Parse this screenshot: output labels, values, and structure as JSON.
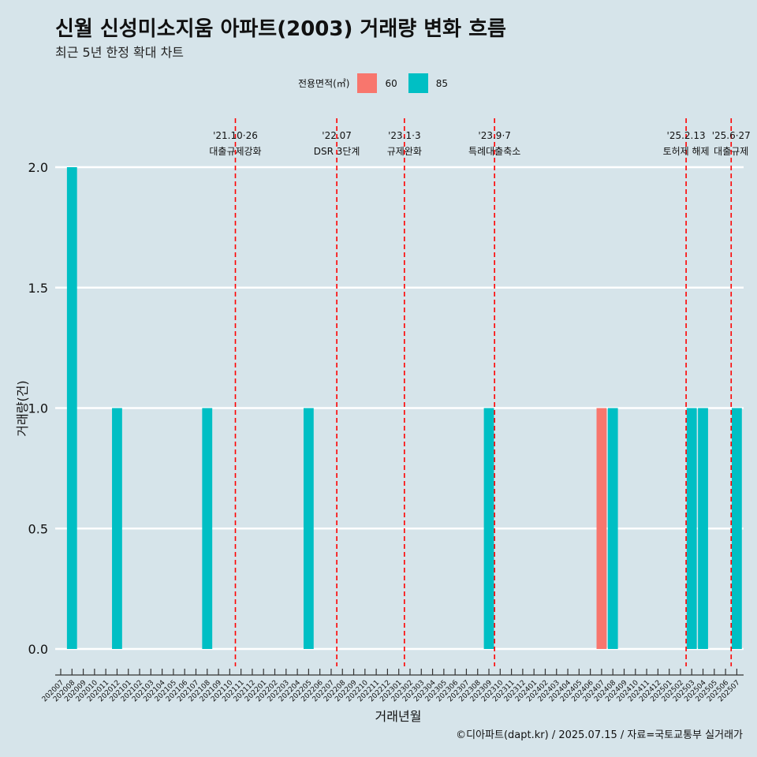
{
  "chart_data": {
    "type": "bar",
    "title": "신월 신성미소지움 아파트(2003) 거래량 변화 흐름",
    "subtitle": "최근 5년 한정 확대 차트",
    "xlabel": "거래년월",
    "ylabel": "거래량(건)",
    "ylim": [
      0,
      2
    ],
    "yticks": [
      "0.0",
      "0.5",
      "1.0",
      "1.5",
      "2.0"
    ],
    "legend": {
      "title": "전용면적(㎡)",
      "position": "top",
      "items": [
        {
          "name": "60",
          "color": "#f8766d"
        },
        {
          "name": "85",
          "color": "#00bfc4"
        }
      ]
    },
    "categories": [
      "202007",
      "202008",
      "202009",
      "202010",
      "202011",
      "202012",
      "202101",
      "202102",
      "202103",
      "202104",
      "202105",
      "202106",
      "202107",
      "202108",
      "202109",
      "202110",
      "202111",
      "202112",
      "202201",
      "202202",
      "202203",
      "202204",
      "202205",
      "202206",
      "202207",
      "202208",
      "202209",
      "202210",
      "202211",
      "202212",
      "202301",
      "202302",
      "202303",
      "202304",
      "202305",
      "202306",
      "202307",
      "202308",
      "202309",
      "202310",
      "202311",
      "202312",
      "202401",
      "202402",
      "202403",
      "202404",
      "202405",
      "202406",
      "202407",
      "202408",
      "202409",
      "202410",
      "202411",
      "202412",
      "202501",
      "202502",
      "202503",
      "202504",
      "202505",
      "202506",
      "202507"
    ],
    "series": [
      {
        "name": "60",
        "color": "#f8766d",
        "values": [
          0,
          0,
          0,
          0,
          0,
          0,
          0,
          0,
          0,
          0,
          0,
          0,
          0,
          0,
          0,
          0,
          0,
          0,
          0,
          0,
          0,
          0,
          0,
          0,
          0,
          0,
          0,
          0,
          0,
          0,
          0,
          0,
          0,
          0,
          0,
          0,
          0,
          0,
          0,
          0,
          0,
          0,
          0,
          0,
          0,
          0,
          0,
          0,
          1,
          0,
          0,
          0,
          0,
          0,
          0,
          0,
          0,
          0,
          0,
          0,
          0
        ]
      },
      {
        "name": "85",
        "color": "#00bfc4",
        "values": [
          0,
          2,
          0,
          0,
          0,
          1,
          0,
          0,
          0,
          0,
          0,
          0,
          0,
          1,
          0,
          0,
          0,
          0,
          0,
          0,
          0,
          0,
          1,
          0,
          0,
          0,
          0,
          0,
          0,
          0,
          0,
          0,
          0,
          0,
          0,
          0,
          0,
          0,
          1,
          0,
          0,
          0,
          0,
          0,
          0,
          0,
          0,
          0,
          0,
          1,
          0,
          0,
          0,
          0,
          0,
          0,
          1,
          1,
          0,
          0,
          1
        ]
      }
    ],
    "annotations": [
      {
        "x": "202110",
        "date": "'21.10·26",
        "label": "대출규제강화"
      },
      {
        "x": "202207",
        "date": "'22.07",
        "label": "DSR 3단계"
      },
      {
        "x": "202301",
        "date": "'23.1·3",
        "label": "규제완화"
      },
      {
        "x": "202309",
        "date": "'23.9·7",
        "label": "특례대출축소"
      },
      {
        "x": "202502",
        "date": "'25.2.13",
        "label": "토허제 해제"
      },
      {
        "x": "202506",
        "date": "'25.6·27",
        "label": "대출규제"
      }
    ],
    "caption": "©디아파트(dapt.kr) / 2025.07.15 / 자료=국토교통부 실거래가"
  }
}
